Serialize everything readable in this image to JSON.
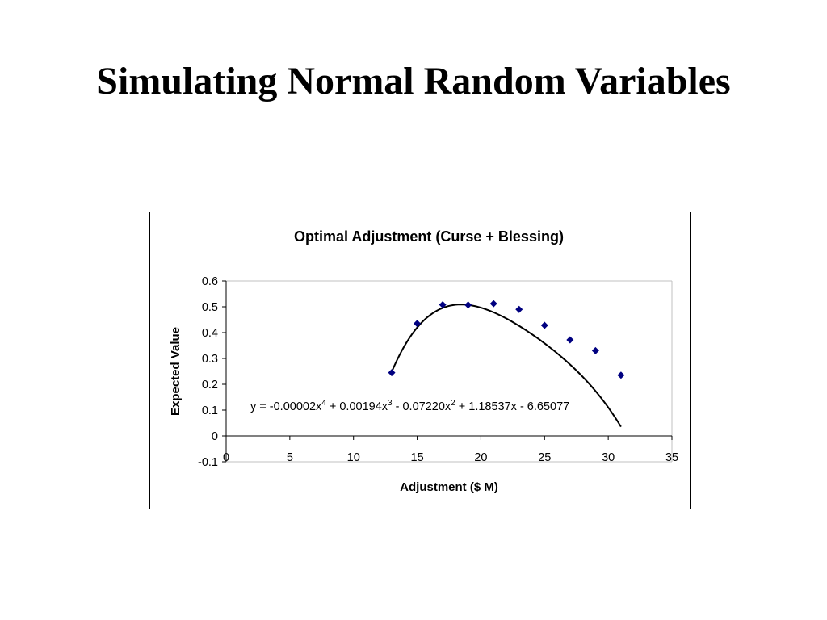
{
  "slide": {
    "title": "Simulating Normal Random Variables"
  },
  "chart_data": {
    "type": "scatter",
    "title": "Optimal Adjustment (Curse + Blessing)",
    "xlabel": "Adjustment ($ M)",
    "ylabel": "Expected Value",
    "xlim": [
      0,
      35
    ],
    "ylim": [
      -0.1,
      0.6
    ],
    "xticks": [
      0,
      5,
      10,
      15,
      20,
      25,
      30,
      35
    ],
    "yticks": [
      -0.1,
      0,
      0.1,
      0.2,
      0.3,
      0.4,
      0.5,
      0.6
    ],
    "xtick_labels": [
      "0",
      "5",
      "10",
      "15",
      "20",
      "25",
      "30",
      "35"
    ],
    "ytick_labels": [
      "-0.1",
      "0",
      "0.1",
      "0.2",
      "0.3",
      "0.4",
      "0.5",
      "0.6"
    ],
    "grid": false,
    "legend": "none",
    "series": [
      {
        "x": [
          13,
          15,
          17,
          19,
          21,
          23,
          25,
          27,
          29,
          31
        ],
        "y": [
          0.245,
          0.435,
          0.508,
          0.507,
          0.512,
          0.49,
          0.428,
          0.372,
          0.33,
          0.235
        ],
        "marker": "diamond",
        "color": "#000080"
      }
    ],
    "trendline": {
      "type": "polynomial",
      "order": 4,
      "coefficients": [
        -2e-05,
        0.00194,
        -0.0722,
        1.18537,
        -6.65077
      ],
      "x_range": [
        13,
        31
      ],
      "color": "#000000",
      "equation": {
        "p1": "y = -0.00002x",
        "s1": "4",
        "p2": " + 0.00194x",
        "s2": "3",
        "p3": " - 0.07220x",
        "s3": "2",
        "p4": " + 1.18537x - 6.65077"
      }
    }
  }
}
